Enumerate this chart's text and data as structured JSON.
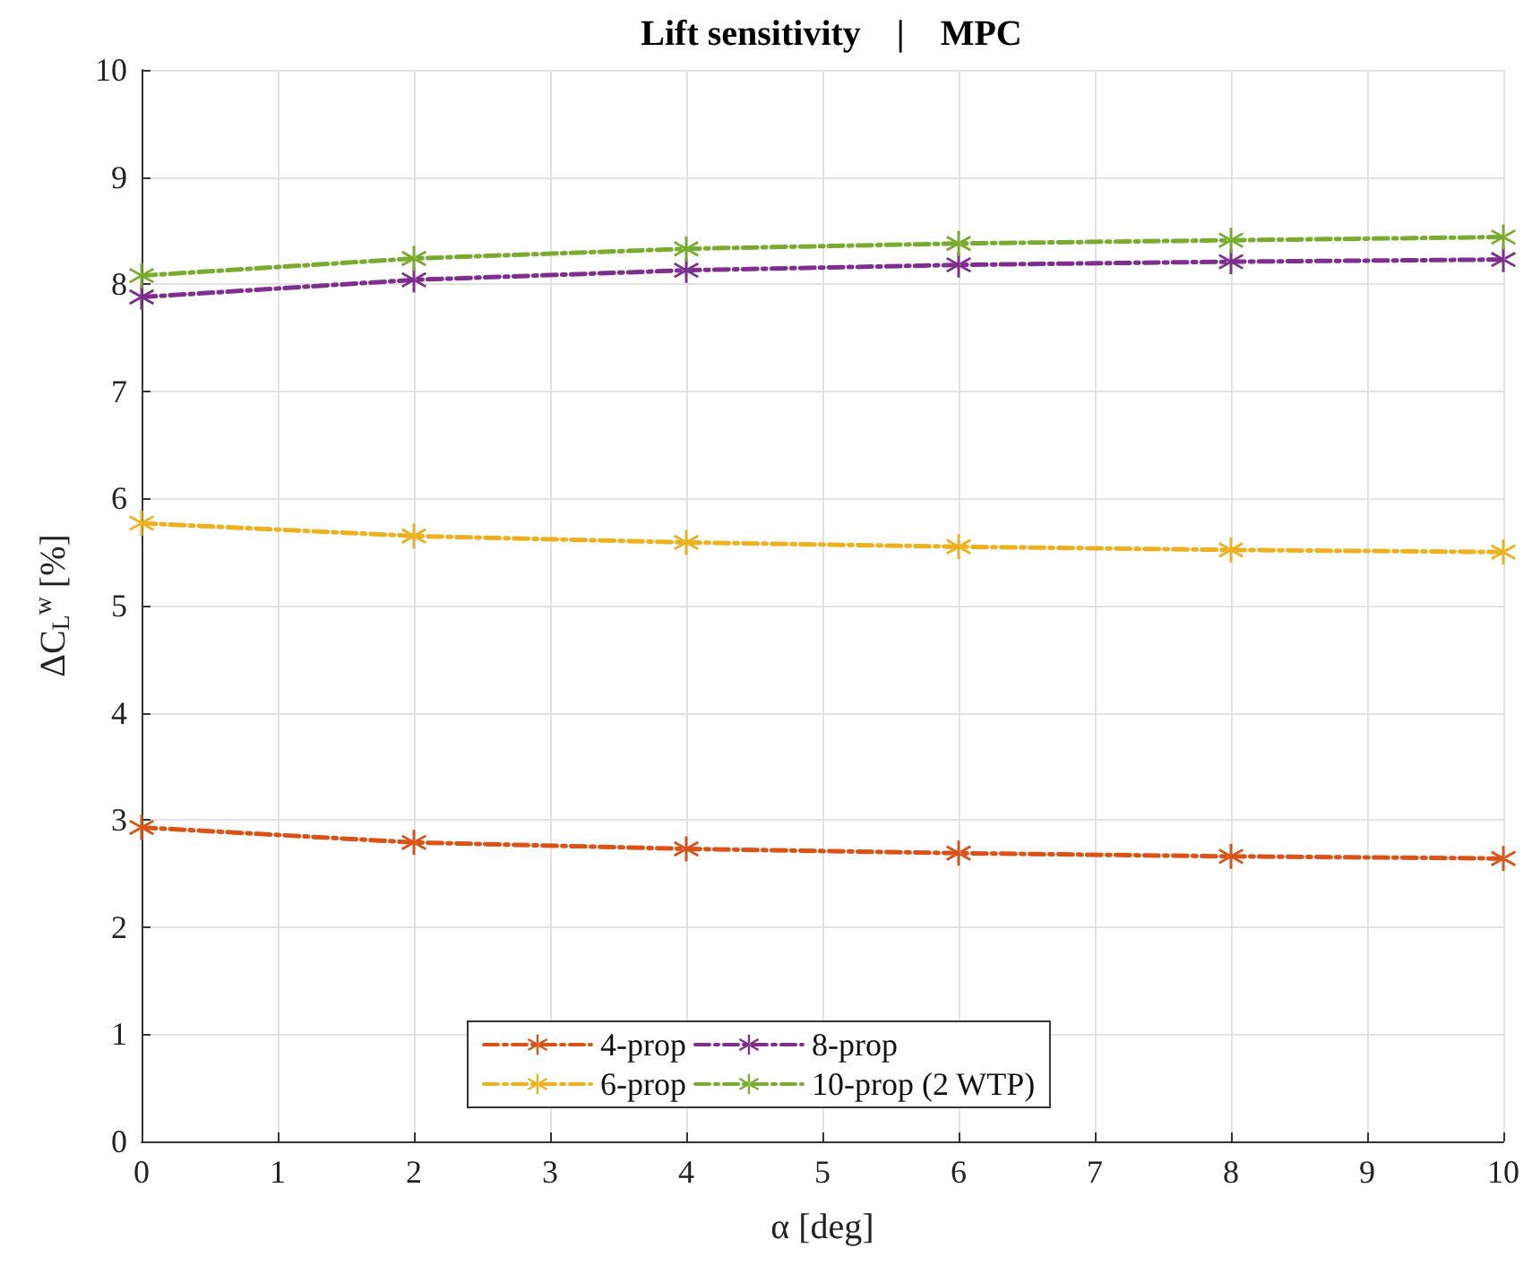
{
  "chart_data": {
    "type": "line",
    "title": "Lift sensitivity    |    MPC",
    "xlabel": "α [deg]",
    "ylabel": "ΔC$_{L}$$^{w}$ [%]",
    "x": [
      0,
      2,
      4,
      6,
      8,
      10
    ],
    "series": [
      {
        "name": "4-prop",
        "color": "#d95319",
        "values": [
          2.93,
          2.79,
          2.73,
          2.69,
          2.66,
          2.64
        ]
      },
      {
        "name": "6-prop",
        "color": "#edb120",
        "values": [
          5.77,
          5.65,
          5.59,
          5.55,
          5.52,
          5.5
        ]
      },
      {
        "name": "8-prop",
        "color": "#7e2f8e",
        "values": [
          7.88,
          8.04,
          8.13,
          8.18,
          8.21,
          8.23
        ]
      },
      {
        "name": "10-prop (2 WTP)",
        "color": "#77ac30",
        "values": [
          8.08,
          8.24,
          8.33,
          8.38,
          8.41,
          8.44
        ]
      }
    ],
    "xlim": [
      0,
      10
    ],
    "xticks": [
      0,
      1,
      2,
      3,
      4,
      5,
      6,
      7,
      8,
      9,
      10
    ],
    "ylim": [
      0,
      10
    ],
    "yticks": [
      0,
      1,
      2,
      3,
      4,
      5,
      6,
      7,
      8,
      9,
      10
    ],
    "grid": true,
    "legend": "bottom",
    "marker": "cross",
    "line_style": "dashed"
  }
}
